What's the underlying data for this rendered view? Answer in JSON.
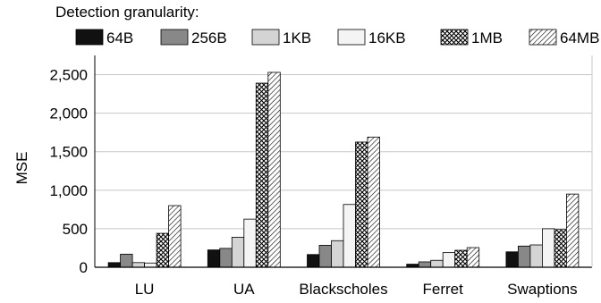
{
  "chart_data": {
    "type": "bar",
    "legend_title": "Detection granularity:",
    "ylabel": "MSE",
    "xlabel": "",
    "ylim": [
      0,
      2750
    ],
    "yticks": [
      0,
      500,
      1000,
      1500,
      2000,
      2500
    ],
    "ytick_labels": [
      "0",
      "500",
      "1,000",
      "1,500",
      "2,000",
      "2,500"
    ],
    "grid": "horizontal",
    "legend_position": "top",
    "categories": [
      "LU",
      "UA",
      "Blackscholes",
      "Ferret",
      "Swaptions"
    ],
    "series": [
      {
        "name": "64B",
        "fill": "#111111",
        "pattern": "solid",
        "values": [
          60,
          225,
          165,
          40,
          200
        ]
      },
      {
        "name": "256B",
        "fill": "#888888",
        "pattern": "solid",
        "values": [
          170,
          245,
          285,
          70,
          275
        ]
      },
      {
        "name": "1KB",
        "fill": "#d4d4d4",
        "pattern": "solid",
        "values": [
          60,
          390,
          345,
          90,
          290
        ]
      },
      {
        "name": "16KB",
        "fill": "#f4f4f4",
        "pattern": "solid",
        "values": [
          55,
          625,
          815,
          190,
          500
        ]
      },
      {
        "name": "1MB",
        "fill": "#ffffff",
        "pattern": "crosshatch",
        "values": [
          440,
          2390,
          1625,
          220,
          490
        ]
      },
      {
        "name": "64MB",
        "fill": "#ffffff",
        "pattern": "diagonal",
        "values": [
          800,
          2530,
          1690,
          255,
          950
        ]
      }
    ]
  }
}
